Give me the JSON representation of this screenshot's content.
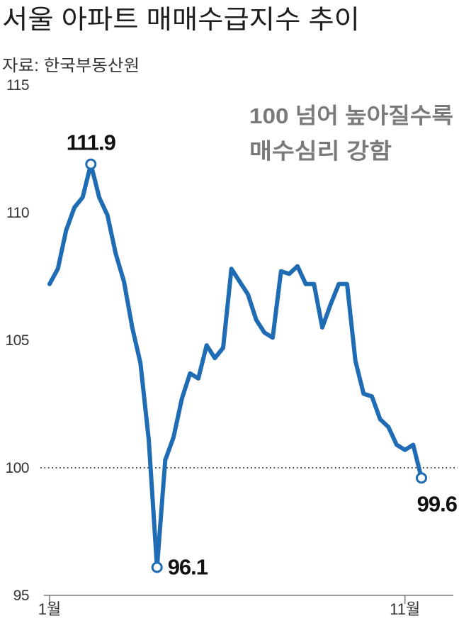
{
  "chart_data": {
    "type": "line",
    "title": "서울 아파트 매매수급지수 추이",
    "source": "자료: 한국부동산원",
    "annotation": [
      "100 넘어 높아질수록",
      "매수심리 강함"
    ],
    "categories": [
      "1월",
      "",
      "",
      "",
      "",
      "",
      "",
      "",
      "",
      "",
      "",
      "",
      "",
      "",
      "",
      "",
      "",
      "",
      "",
      "",
      "",
      "",
      "",
      "",
      "",
      "",
      "",
      "",
      "",
      "",
      "",
      "",
      "",
      "",
      "",
      "",
      "",
      "",
      "",
      "",
      "",
      "",
      "",
      "11월",
      "",
      ""
    ],
    "series": [
      {
        "values": [
          107.2,
          107.8,
          109.3,
          110.2,
          110.6,
          111.9,
          110.6,
          109.9,
          108.4,
          107.3,
          105.5,
          104.1,
          101.1,
          96.1,
          100.3,
          101.2,
          102.7,
          103.7,
          103.5,
          104.8,
          104.3,
          104.7,
          107.8,
          107.3,
          106.8,
          105.8,
          105.3,
          105.1,
          107.7,
          107.6,
          107.9,
          107.2,
          107.2,
          105.5,
          106.4,
          107.2,
          107.2,
          104.2,
          102.9,
          102.8,
          101.9,
          101.6,
          100.9,
          100.7,
          100.9,
          99.6
        ]
      }
    ],
    "ylim": [
      95,
      115
    ],
    "yticks": [
      115,
      110,
      105,
      100,
      95
    ],
    "reference_line": {
      "value": 100,
      "style": "dotted"
    },
    "grid": false,
    "colors": {
      "line": "#1f6cb5",
      "marker_fill": "#ffffff",
      "annotation": "#7a7a7a",
      "reference_line": "#333333",
      "axis": "#777777"
    }
  }
}
